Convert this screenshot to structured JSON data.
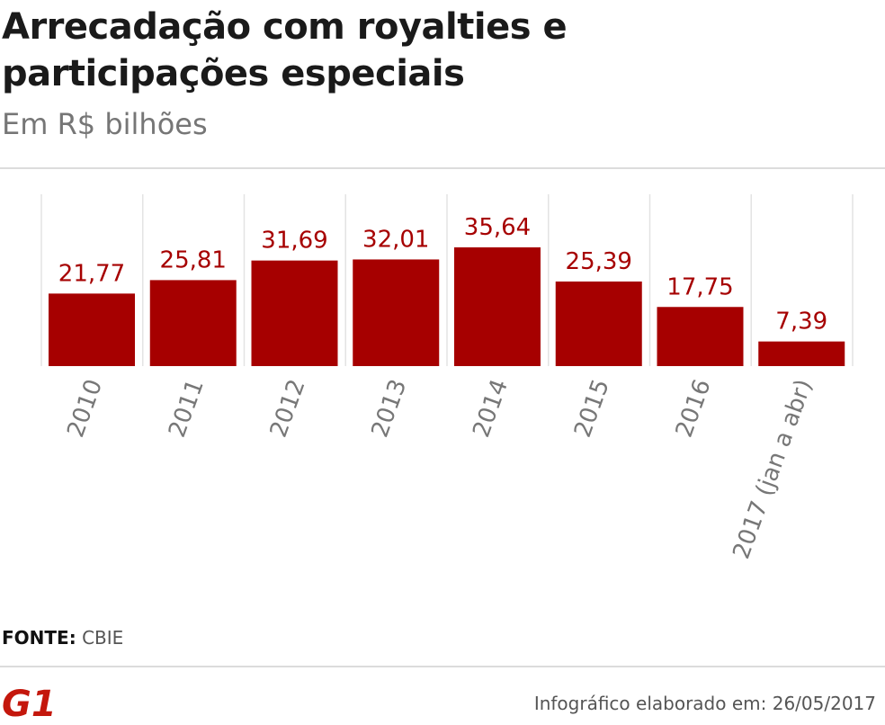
{
  "header": {
    "title_line1": "Arrecadação com royalties e",
    "title_line2": "participações especiais",
    "subtitle": "Em R$ bilhões"
  },
  "chart_data": {
    "type": "bar",
    "title": "Arrecadação com royalties e participações especiais",
    "subtitle": "Em R$ bilhões",
    "categories": [
      "2010",
      "2011",
      "2012",
      "2013",
      "2014",
      "2015",
      "2016",
      "2017 (jan a abr)"
    ],
    "values": [
      21.77,
      25.81,
      31.69,
      32.01,
      35.64,
      25.39,
      17.75,
      7.39
    ],
    "value_labels": [
      "21,77",
      "25,81",
      "31,69",
      "32,01",
      "35,64",
      "25,39",
      "17,75",
      "7,39"
    ],
    "xlabel": "",
    "ylabel": "R$ bilhões",
    "ylim": [
      0,
      35.64
    ],
    "grid": false,
    "legend": "none",
    "bar_color": "#a60000",
    "label_color": "#a60000"
  },
  "footer": {
    "source_label": "FONTE:",
    "source_value": "CBIE",
    "logo_text": "G1",
    "credit": "Infográfico elaborado em: 26/05/2017"
  },
  "colors": {
    "bar": "#a60000",
    "logo": "#c4170c",
    "title": "#1a1a1a",
    "subtitle": "#767676"
  }
}
